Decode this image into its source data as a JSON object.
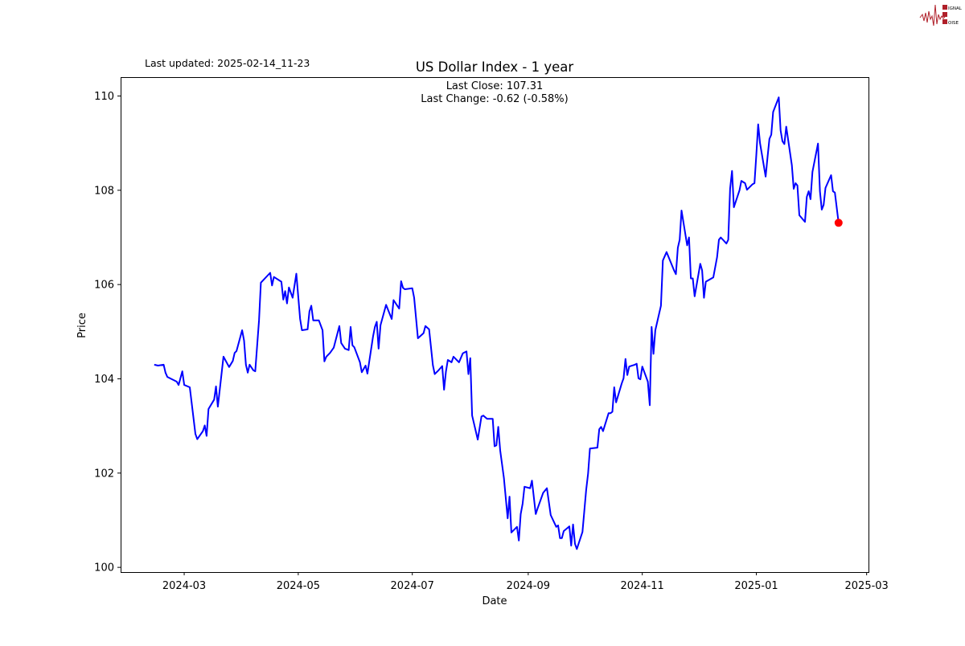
{
  "header": {
    "last_updated": "Last updated: 2025-02-14_11-23"
  },
  "logo": {
    "text": "SIGNAL 2 NOISE",
    "color": "#b0202a"
  },
  "chart_data": {
    "type": "line",
    "title": "US Dollar Index - 1 year",
    "annotation": [
      "Last Close: 107.31",
      "Last Change: -0.62 (-0.58%)"
    ],
    "xlabel": "Date",
    "ylabel": "Price",
    "ylim": [
      99.9,
      110.4
    ],
    "xlim": [
      "2024-01-27",
      "2025-03-02"
    ],
    "yticks": [
      100,
      102,
      104,
      106,
      108,
      110
    ],
    "xticks": [
      "2024-03",
      "2024-05",
      "2024-07",
      "2024-09",
      "2024-11",
      "2025-01",
      "2025-03"
    ],
    "grid": false,
    "line_color": "#0000ff",
    "marker_color": "#ff0000",
    "last_point": {
      "date": "2025-02-14",
      "value": 107.31
    },
    "points": [
      [
        "2024-02-14",
        104.3
      ],
      [
        "2024-02-16",
        104.28
      ],
      [
        "2024-02-19",
        104.3
      ],
      [
        "2024-02-20",
        104.13
      ],
      [
        "2024-02-21",
        104.04
      ],
      [
        "2024-02-26",
        103.94
      ],
      [
        "2024-02-27",
        103.87
      ],
      [
        "2024-02-29",
        104.16
      ],
      [
        "2024-03-01",
        103.87
      ],
      [
        "2024-03-04",
        103.82
      ],
      [
        "2024-03-07",
        102.83
      ],
      [
        "2024-03-08",
        102.72
      ],
      [
        "2024-03-11",
        102.89
      ],
      [
        "2024-03-12",
        103.01
      ],
      [
        "2024-03-13",
        102.79
      ],
      [
        "2024-03-14",
        103.36
      ],
      [
        "2024-03-17",
        103.56
      ],
      [
        "2024-03-18",
        103.84
      ],
      [
        "2024-03-19",
        103.41
      ],
      [
        "2024-03-22",
        104.47
      ],
      [
        "2024-03-25",
        104.25
      ],
      [
        "2024-03-27",
        104.38
      ],
      [
        "2024-03-28",
        104.55
      ],
      [
        "2024-03-29",
        104.59
      ],
      [
        "2024-04-01",
        105.03
      ],
      [
        "2024-04-02",
        104.81
      ],
      [
        "2024-04-03",
        104.3
      ],
      [
        "2024-04-04",
        104.13
      ],
      [
        "2024-04-05",
        104.3
      ],
      [
        "2024-04-07",
        104.18
      ],
      [
        "2024-04-08",
        104.16
      ],
      [
        "2024-04-10",
        105.24
      ],
      [
        "2024-04-11",
        106.04
      ],
      [
        "2024-04-16",
        106.25
      ],
      [
        "2024-04-17",
        105.98
      ],
      [
        "2024-04-18",
        106.16
      ],
      [
        "2024-04-22",
        106.06
      ],
      [
        "2024-04-23",
        105.68
      ],
      [
        "2024-04-24",
        105.86
      ],
      [
        "2024-04-25",
        105.6
      ],
      [
        "2024-04-26",
        105.94
      ],
      [
        "2024-04-28",
        105.72
      ],
      [
        "2024-04-30",
        106.23
      ],
      [
        "2024-05-02",
        105.27
      ],
      [
        "2024-05-03",
        105.03
      ],
      [
        "2024-05-06",
        105.05
      ],
      [
        "2024-05-07",
        105.43
      ],
      [
        "2024-05-08",
        105.55
      ],
      [
        "2024-05-09",
        105.24
      ],
      [
        "2024-05-12",
        105.24
      ],
      [
        "2024-05-14",
        105.03
      ],
      [
        "2024-05-15",
        104.37
      ],
      [
        "2024-05-16",
        104.47
      ],
      [
        "2024-05-18",
        104.55
      ],
      [
        "2024-05-20",
        104.66
      ],
      [
        "2024-05-22",
        104.97
      ],
      [
        "2024-05-23",
        105.12
      ],
      [
        "2024-05-24",
        104.76
      ],
      [
        "2024-05-26",
        104.64
      ],
      [
        "2024-05-28",
        104.61
      ],
      [
        "2024-05-29",
        105.1
      ],
      [
        "2024-05-30",
        104.71
      ],
      [
        "2024-05-31",
        104.67
      ],
      [
        "2024-06-03",
        104.35
      ],
      [
        "2024-06-04",
        104.14
      ],
      [
        "2024-06-06",
        104.28
      ],
      [
        "2024-06-07",
        104.11
      ],
      [
        "2024-06-10",
        104.9
      ],
      [
        "2024-06-11",
        105.1
      ],
      [
        "2024-06-12",
        105.21
      ],
      [
        "2024-06-13",
        104.64
      ],
      [
        "2024-06-14",
        105.14
      ],
      [
        "2024-06-17",
        105.57
      ],
      [
        "2024-06-20",
        105.27
      ],
      [
        "2024-06-21",
        105.67
      ],
      [
        "2024-06-24",
        105.49
      ],
      [
        "2024-06-25",
        106.07
      ],
      [
        "2024-06-26",
        105.93
      ],
      [
        "2024-06-27",
        105.9
      ],
      [
        "2024-07-01",
        105.92
      ],
      [
        "2024-07-02",
        105.72
      ],
      [
        "2024-07-04",
        104.86
      ],
      [
        "2024-07-07",
        104.97
      ],
      [
        "2024-07-08",
        105.12
      ],
      [
        "2024-07-10",
        105.05
      ],
      [
        "2024-07-12",
        104.29
      ],
      [
        "2024-07-13",
        104.1
      ],
      [
        "2024-07-15",
        104.18
      ],
      [
        "2024-07-17",
        104.27
      ],
      [
        "2024-07-18",
        103.77
      ],
      [
        "2024-07-19",
        104.15
      ],
      [
        "2024-07-20",
        104.4
      ],
      [
        "2024-07-22",
        104.35
      ],
      [
        "2024-07-23",
        104.47
      ],
      [
        "2024-07-26",
        104.35
      ],
      [
        "2024-07-28",
        104.54
      ],
      [
        "2024-07-30",
        104.58
      ],
      [
        "2024-07-31",
        104.1
      ],
      [
        "2024-08-01",
        104.44
      ],
      [
        "2024-08-02",
        103.22
      ],
      [
        "2024-08-05",
        102.71
      ],
      [
        "2024-08-07",
        103.2
      ],
      [
        "2024-08-08",
        103.22
      ],
      [
        "2024-08-10",
        103.15
      ],
      [
        "2024-08-13",
        103.15
      ],
      [
        "2024-08-14",
        102.57
      ],
      [
        "2024-08-15",
        102.59
      ],
      [
        "2024-08-16",
        102.98
      ],
      [
        "2024-08-17",
        102.48
      ],
      [
        "2024-08-19",
        101.9
      ],
      [
        "2024-08-21",
        101.04
      ],
      [
        "2024-08-22",
        101.5
      ],
      [
        "2024-08-23",
        100.74
      ],
      [
        "2024-08-26",
        100.86
      ],
      [
        "2024-08-27",
        100.57
      ],
      [
        "2024-08-28",
        101.13
      ],
      [
        "2024-08-29",
        101.35
      ],
      [
        "2024-08-30",
        101.71
      ],
      [
        "2024-09-02",
        101.68
      ],
      [
        "2024-09-03",
        101.84
      ],
      [
        "2024-09-05",
        101.13
      ],
      [
        "2024-09-06",
        101.25
      ],
      [
        "2024-09-09",
        101.58
      ],
      [
        "2024-09-11",
        101.68
      ],
      [
        "2024-09-13",
        101.11
      ],
      [
        "2024-09-16",
        100.86
      ],
      [
        "2024-09-17",
        100.89
      ],
      [
        "2024-09-18",
        100.62
      ],
      [
        "2024-09-19",
        100.62
      ],
      [
        "2024-09-20",
        100.77
      ],
      [
        "2024-09-23",
        100.87
      ],
      [
        "2024-09-24",
        100.46
      ],
      [
        "2024-09-25",
        100.91
      ],
      [
        "2024-09-26",
        100.5
      ],
      [
        "2024-09-27",
        100.39
      ],
      [
        "2024-09-30",
        100.75
      ],
      [
        "2024-10-02",
        101.64
      ],
      [
        "2024-10-03",
        101.99
      ],
      [
        "2024-10-04",
        102.52
      ],
      [
        "2024-10-08",
        102.54
      ],
      [
        "2024-10-09",
        102.93
      ],
      [
        "2024-10-10",
        102.98
      ],
      [
        "2024-10-11",
        102.89
      ],
      [
        "2024-10-14",
        103.27
      ],
      [
        "2024-10-15",
        103.27
      ],
      [
        "2024-10-16",
        103.3
      ],
      [
        "2024-10-17",
        103.82
      ],
      [
        "2024-10-18",
        103.5
      ],
      [
        "2024-10-21",
        103.9
      ],
      [
        "2024-10-22",
        104.01
      ],
      [
        "2024-10-23",
        104.42
      ],
      [
        "2024-10-24",
        104.08
      ],
      [
        "2024-10-25",
        104.26
      ],
      [
        "2024-10-28",
        104.3
      ],
      [
        "2024-10-29",
        104.32
      ],
      [
        "2024-10-30",
        104.01
      ],
      [
        "2024-10-31",
        103.99
      ],
      [
        "2024-11-01",
        104.26
      ],
      [
        "2024-11-04",
        103.94
      ],
      [
        "2024-11-05",
        103.44
      ],
      [
        "2024-11-06",
        105.1
      ],
      [
        "2024-11-07",
        104.53
      ],
      [
        "2024-11-08",
        105.03
      ],
      [
        "2024-11-11",
        105.55
      ],
      [
        "2024-11-12",
        106.51
      ],
      [
        "2024-11-14",
        106.69
      ],
      [
        "2024-11-18",
        106.3
      ],
      [
        "2024-11-19",
        106.22
      ],
      [
        "2024-11-20",
        106.78
      ],
      [
        "2024-11-21",
        106.95
      ],
      [
        "2024-11-22",
        107.57
      ],
      [
        "2024-11-25",
        106.83
      ],
      [
        "2024-11-26",
        107.0
      ],
      [
        "2024-11-27",
        106.13
      ],
      [
        "2024-11-28",
        106.13
      ],
      [
        "2024-11-29",
        105.75
      ],
      [
        "2024-12-02",
        106.44
      ],
      [
        "2024-12-03",
        106.3
      ],
      [
        "2024-12-04",
        105.72
      ],
      [
        "2024-12-05",
        106.06
      ],
      [
        "2024-12-09",
        106.15
      ],
      [
        "2024-12-11",
        106.58
      ],
      [
        "2024-12-12",
        106.95
      ],
      [
        "2024-12-13",
        107.0
      ],
      [
        "2024-12-16",
        106.87
      ],
      [
        "2024-12-17",
        106.95
      ],
      [
        "2024-12-18",
        108.03
      ],
      [
        "2024-12-19",
        108.41
      ],
      [
        "2024-12-20",
        107.64
      ],
      [
        "2024-12-23",
        108.0
      ],
      [
        "2024-12-24",
        108.2
      ],
      [
        "2024-12-26",
        108.15
      ],
      [
        "2024-12-27",
        108.01
      ],
      [
        "2024-12-30",
        108.13
      ],
      [
        "2024-12-31",
        108.15
      ],
      [
        "2025-01-01",
        108.75
      ],
      [
        "2025-01-02",
        109.4
      ],
      [
        "2025-01-03",
        109.0
      ],
      [
        "2025-01-06",
        108.29
      ],
      [
        "2025-01-07",
        108.71
      ],
      [
        "2025-01-08",
        109.09
      ],
      [
        "2025-01-09",
        109.18
      ],
      [
        "2025-01-10",
        109.66
      ],
      [
        "2025-01-13",
        109.97
      ],
      [
        "2025-01-14",
        109.27
      ],
      [
        "2025-01-15",
        109.04
      ],
      [
        "2025-01-16",
        108.98
      ],
      [
        "2025-01-17",
        109.35
      ],
      [
        "2025-01-20",
        108.53
      ],
      [
        "2025-01-21",
        108.03
      ],
      [
        "2025-01-22",
        108.15
      ],
      [
        "2025-01-23",
        108.1
      ],
      [
        "2025-01-24",
        107.47
      ],
      [
        "2025-01-27",
        107.33
      ],
      [
        "2025-01-28",
        107.86
      ],
      [
        "2025-01-29",
        107.98
      ],
      [
        "2025-01-30",
        107.81
      ],
      [
        "2025-01-31",
        108.39
      ],
      [
        "2025-02-03",
        108.99
      ],
      [
        "2025-02-04",
        107.98
      ],
      [
        "2025-02-05",
        107.59
      ],
      [
        "2025-02-06",
        107.69
      ],
      [
        "2025-02-07",
        108.05
      ],
      [
        "2025-02-10",
        108.32
      ],
      [
        "2025-02-11",
        107.98
      ],
      [
        "2025-02-12",
        107.95
      ],
      [
        "2025-02-14",
        107.31
      ]
    ]
  }
}
